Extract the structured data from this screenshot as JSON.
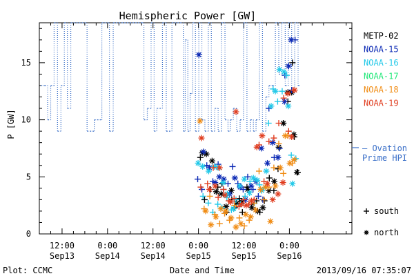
{
  "chart_data": {
    "type": "scatter",
    "title": "Hemispheric Power [GW]",
    "ylabel": "P [GW]",
    "xlabel": "Date and Time",
    "x_unit": "hours",
    "xlim": [
      0,
      82.5
    ],
    "ylim": [
      0,
      18.5
    ],
    "y_ticks": [
      0,
      5,
      10,
      15
    ],
    "x_ticks": [
      {
        "x": 6,
        "line1": "12:00",
        "line2": "Sep13"
      },
      {
        "x": 18,
        "line1": "0:00",
        "line2": "Sep14"
      },
      {
        "x": 30,
        "line1": "12:00",
        "line2": "Sep14"
      },
      {
        "x": 42,
        "line1": "0:00",
        "line2": "Sep15"
      },
      {
        "x": 54,
        "line1": "12:00",
        "line2": "Sep15"
      },
      {
        "x": 66,
        "line1": "0:00",
        "line2": "Sep16"
      }
    ],
    "ovation": {
      "name": "Ovation Prime HPI",
      "legend_line1": "— Ovation",
      "legend_line2": "Prime HPI",
      "color": "#3a6fc8",
      "steps": [
        [
          0.4,
          13
        ],
        [
          1.4,
          13
        ],
        [
          2.2,
          10
        ],
        [
          3.0,
          13
        ],
        [
          3.9,
          18.5
        ],
        [
          4.8,
          9
        ],
        [
          5.7,
          13
        ],
        [
          6.6,
          18.5
        ],
        [
          7.4,
          11
        ],
        [
          8.3,
          18.5
        ],
        [
          12.0,
          18.5
        ],
        [
          12.6,
          9
        ],
        [
          14.5,
          10
        ],
        [
          16.5,
          18.5
        ],
        [
          18.5,
          9
        ],
        [
          19.5,
          18.5
        ],
        [
          27.0,
          18.5
        ],
        [
          27.6,
          10
        ],
        [
          28.5,
          11
        ],
        [
          29.5,
          18.5
        ],
        [
          30.3,
          9
        ],
        [
          31.0,
          11
        ],
        [
          32.5,
          18.5
        ],
        [
          33.5,
          9
        ],
        [
          35.0,
          18.5
        ],
        [
          38.0,
          9
        ],
        [
          38.5,
          17
        ],
        [
          39.2,
          9
        ],
        [
          39.8,
          12.3
        ],
        [
          40.5,
          18.5
        ],
        [
          41.2,
          9
        ],
        [
          42.1,
          18.5
        ],
        [
          42.9,
          10
        ],
        [
          43.7,
          9
        ],
        [
          44.6,
          18.5
        ],
        [
          45.4,
          9
        ],
        [
          46.3,
          11
        ],
        [
          47.2,
          9
        ],
        [
          48.1,
          18.5
        ],
        [
          49.0,
          10
        ],
        [
          49.8,
          9
        ],
        [
          50.4,
          10
        ],
        [
          51.2,
          11
        ],
        [
          52.1,
          9
        ],
        [
          53.0,
          10
        ],
        [
          53.9,
          18.5
        ],
        [
          54.8,
          9
        ],
        [
          55.7,
          10
        ],
        [
          56.5,
          9
        ],
        [
          57.2,
          10
        ],
        [
          58.1,
          18.5
        ],
        [
          58.9,
          9
        ],
        [
          59.8,
          12
        ],
        [
          60.6,
          13
        ],
        [
          61.5,
          13
        ],
        [
          62.3,
          18.5
        ],
        [
          63.2,
          14
        ],
        [
          64.0,
          18.5
        ],
        [
          64.9,
          13
        ],
        [
          65.7,
          18.5
        ],
        [
          66.6,
          12.3
        ],
        [
          67.4,
          18.5
        ],
        [
          68.3,
          13
        ],
        [
          68.8,
          13
        ]
      ]
    },
    "series": [
      {
        "name": "METP-02",
        "color": "#000000",
        "south": [
          [
            42.5,
            6.7
          ],
          [
            43.6,
            3.0
          ],
          [
            45.2,
            3.9
          ],
          [
            47.1,
            4.1
          ],
          [
            48.2,
            4.4
          ],
          [
            49.4,
            1.9
          ],
          [
            50.8,
            3.0
          ],
          [
            51.6,
            2.3
          ],
          [
            52.8,
            3.1
          ],
          [
            53.6,
            1.9
          ],
          [
            54.8,
            4.1
          ],
          [
            56.0,
            2.6
          ],
          [
            57.3,
            2.9
          ],
          [
            58.2,
            1.9
          ],
          [
            59.4,
            2.9
          ],
          [
            60.7,
            4.9
          ],
          [
            61.9,
            3.8
          ],
          [
            63.0,
            5.7
          ],
          [
            64.4,
            9.7
          ],
          [
            65.6,
            11.6
          ],
          [
            66.8,
            15.0
          ],
          [
            67.3,
            8.5
          ],
          [
            68.2,
            5.4
          ]
        ],
        "north": [
          [
            43.0,
            7.1
          ],
          [
            44.1,
            7.0
          ],
          [
            45.6,
            6.4
          ],
          [
            46.7,
            3.7
          ],
          [
            48.0,
            3.5
          ],
          [
            49.3,
            2.4
          ],
          [
            50.7,
            3.8
          ],
          [
            52.1,
            2.7
          ],
          [
            53.4,
            2.8
          ],
          [
            55.0,
            3.9
          ],
          [
            56.1,
            2.3
          ],
          [
            57.6,
            2.0
          ],
          [
            59.0,
            2.3
          ],
          [
            60.6,
            3.8
          ],
          [
            62.0,
            4.6
          ],
          [
            63.2,
            7.6
          ],
          [
            64.4,
            9.7
          ],
          [
            65.6,
            12.4
          ],
          [
            66.6,
            12.4
          ],
          [
            67.2,
            8.7
          ],
          [
            68.0,
            5.4
          ]
        ]
      },
      {
        "name": "NOAA-15",
        "color": "#0a28b4",
        "south": [
          [
            41.8,
            4.8
          ],
          [
            42.9,
            3.9
          ],
          [
            44.2,
            6.0
          ],
          [
            45.8,
            4.6
          ],
          [
            47.2,
            6.1
          ],
          [
            48.6,
            3.9
          ],
          [
            49.8,
            4.4
          ],
          [
            51.0,
            5.9
          ],
          [
            52.4,
            4.4
          ],
          [
            53.8,
            3.9
          ],
          [
            55.0,
            5.0
          ],
          [
            56.4,
            3.9
          ],
          [
            57.8,
            3.3
          ],
          [
            59.0,
            3.0
          ],
          [
            60.6,
            11.0
          ],
          [
            62.0,
            6.7
          ],
          [
            63.4,
            7.5
          ],
          [
            64.8,
            13.9
          ],
          [
            65.8,
            14.7
          ],
          [
            66.6,
            12.6
          ],
          [
            67.5,
            17.0
          ]
        ],
        "north": [
          [
            42.1,
            15.7
          ],
          [
            43.3,
            7.2
          ],
          [
            44.9,
            5.8
          ],
          [
            46.4,
            4.5
          ],
          [
            47.5,
            5.0
          ],
          [
            48.7,
            4.8
          ],
          [
            50.2,
            3.5
          ],
          [
            51.6,
            4.9
          ],
          [
            53.0,
            4.1
          ],
          [
            54.4,
            3.0
          ],
          [
            55.9,
            4.2
          ],
          [
            57.2,
            4.6
          ],
          [
            58.6,
            7.5
          ],
          [
            60.2,
            6.2
          ],
          [
            61.6,
            8.0
          ],
          [
            63.0,
            6.7
          ],
          [
            64.7,
            11.6
          ],
          [
            65.8,
            14.7
          ],
          [
            66.5,
            17.0
          ]
        ]
      },
      {
        "name": "NOAA-16",
        "color": "#20c8e8",
        "south": [
          [
            43.2,
            3.3
          ],
          [
            44.6,
            2.7
          ],
          [
            45.8,
            1.9
          ],
          [
            47.1,
            2.6
          ],
          [
            48.2,
            2.3
          ],
          [
            49.5,
            3.2
          ],
          [
            50.7,
            2.1
          ],
          [
            51.9,
            3.0
          ],
          [
            53.1,
            2.6
          ],
          [
            54.3,
            3.3
          ],
          [
            55.6,
            4.6
          ],
          [
            56.8,
            2.7
          ],
          [
            58.1,
            4.3
          ],
          [
            59.3,
            4.0
          ],
          [
            60.5,
            9.7
          ],
          [
            61.7,
            12.7
          ],
          [
            62.9,
            11.6
          ],
          [
            64.1,
            12.5
          ],
          [
            65.3,
            13.9
          ],
          [
            66.5,
            6.9
          ],
          [
            67.7,
            6.6
          ]
        ],
        "north": [
          [
            41.9,
            6.2
          ],
          [
            43.1,
            5.9
          ],
          [
            44.7,
            5.5
          ],
          [
            46.2,
            5.9
          ],
          [
            47.2,
            5.8
          ],
          [
            48.5,
            4.5
          ],
          [
            49.6,
            3.5
          ],
          [
            51.3,
            2.2
          ],
          [
            52.9,
            4.2
          ],
          [
            54.1,
            4.8
          ],
          [
            55.5,
            3.6
          ],
          [
            56.5,
            4.9
          ],
          [
            57.5,
            4.7
          ],
          [
            58.7,
            3.8
          ],
          [
            59.9,
            5.5
          ],
          [
            61.2,
            11.2
          ],
          [
            62.3,
            12.5
          ],
          [
            63.4,
            14.4
          ],
          [
            64.6,
            14.2
          ],
          [
            65.7,
            11.2
          ],
          [
            66.8,
            4.4
          ]
        ]
      },
      {
        "name": "NOAA-17",
        "color": "#20e878",
        "south": [],
        "north": []
      },
      {
        "name": "NOAA-18",
        "color": "#f08c14",
        "south": [
          [
            43.5,
            2.2
          ],
          [
            45.0,
            3.3
          ],
          [
            46.3,
            1.7
          ],
          [
            47.6,
            0.9
          ],
          [
            48.9,
            1.8
          ],
          [
            50.2,
            1.2
          ],
          [
            51.5,
            2.5
          ],
          [
            52.8,
            1.4
          ],
          [
            54.1,
            0.7
          ],
          [
            55.4,
            1.2
          ],
          [
            56.7,
            2.7
          ],
          [
            58.0,
            5.5
          ],
          [
            59.3,
            3.0
          ],
          [
            60.6,
            4.1
          ],
          [
            61.9,
            5.8
          ],
          [
            63.2,
            7.9
          ],
          [
            64.4,
            5.3
          ],
          [
            65.6,
            8.6
          ],
          [
            66.8,
            6.2
          ]
        ],
        "north": [
          [
            42.4,
            9.9
          ],
          [
            43.9,
            2.0
          ],
          [
            45.3,
            0.8
          ],
          [
            46.6,
            1.5
          ],
          [
            47.9,
            2.2
          ],
          [
            49.2,
            2.0
          ],
          [
            50.6,
            1.4
          ],
          [
            51.9,
            0.6
          ],
          [
            53.2,
            0.9
          ],
          [
            54.5,
            1.7
          ],
          [
            55.8,
            1.5
          ],
          [
            57.1,
            2.1
          ],
          [
            58.4,
            3.9
          ],
          [
            59.7,
            4.1
          ],
          [
            61.0,
            1.1
          ],
          [
            62.3,
            4.2
          ],
          [
            63.6,
            5.8
          ],
          [
            64.9,
            8.6
          ],
          [
            66.1,
            6.2
          ],
          [
            67.3,
            6.5
          ]
        ]
      },
      {
        "name": "NOAA-19",
        "color": "#e03c1e",
        "south": [
          [
            42.6,
            4.1
          ],
          [
            44.4,
            4.4
          ],
          [
            45.9,
            5.8
          ],
          [
            47.2,
            3.2
          ],
          [
            48.6,
            3.9
          ],
          [
            50.0,
            2.9
          ],
          [
            51.4,
            3.1
          ],
          [
            52.7,
            2.4
          ],
          [
            54.0,
            3.0
          ],
          [
            55.3,
            2.6
          ],
          [
            56.7,
            3.0
          ],
          [
            58.0,
            7.8
          ],
          [
            59.3,
            4.6
          ],
          [
            60.6,
            8.1
          ],
          [
            61.9,
            8.4
          ],
          [
            63.2,
            9.7
          ],
          [
            64.5,
            11.9
          ],
          [
            65.8,
            9.0
          ],
          [
            67.0,
            12.6
          ]
        ],
        "north": [
          [
            42.8,
            8.4
          ],
          [
            44.9,
            3.9
          ],
          [
            46.4,
            4.2
          ],
          [
            47.6,
            5.8
          ],
          [
            49.0,
            3.4
          ],
          [
            50.5,
            2.8
          ],
          [
            51.9,
            10.7
          ],
          [
            53.3,
            2.6
          ],
          [
            54.6,
            2.5
          ],
          [
            56.0,
            2.9
          ],
          [
            57.4,
            7.6
          ],
          [
            58.8,
            8.6
          ],
          [
            60.2,
            4.4
          ],
          [
            61.6,
            3.0
          ],
          [
            63.0,
            3.5
          ],
          [
            64.3,
            4.5
          ],
          [
            65.6,
            12.3
          ],
          [
            66.6,
            8.5
          ],
          [
            67.4,
            12.6
          ]
        ]
      }
    ],
    "marker_legend": {
      "south": "south",
      "north": "north"
    },
    "footer_left": "Plot: CCMC",
    "footer_right": "2013/09/16 07:35:07"
  }
}
